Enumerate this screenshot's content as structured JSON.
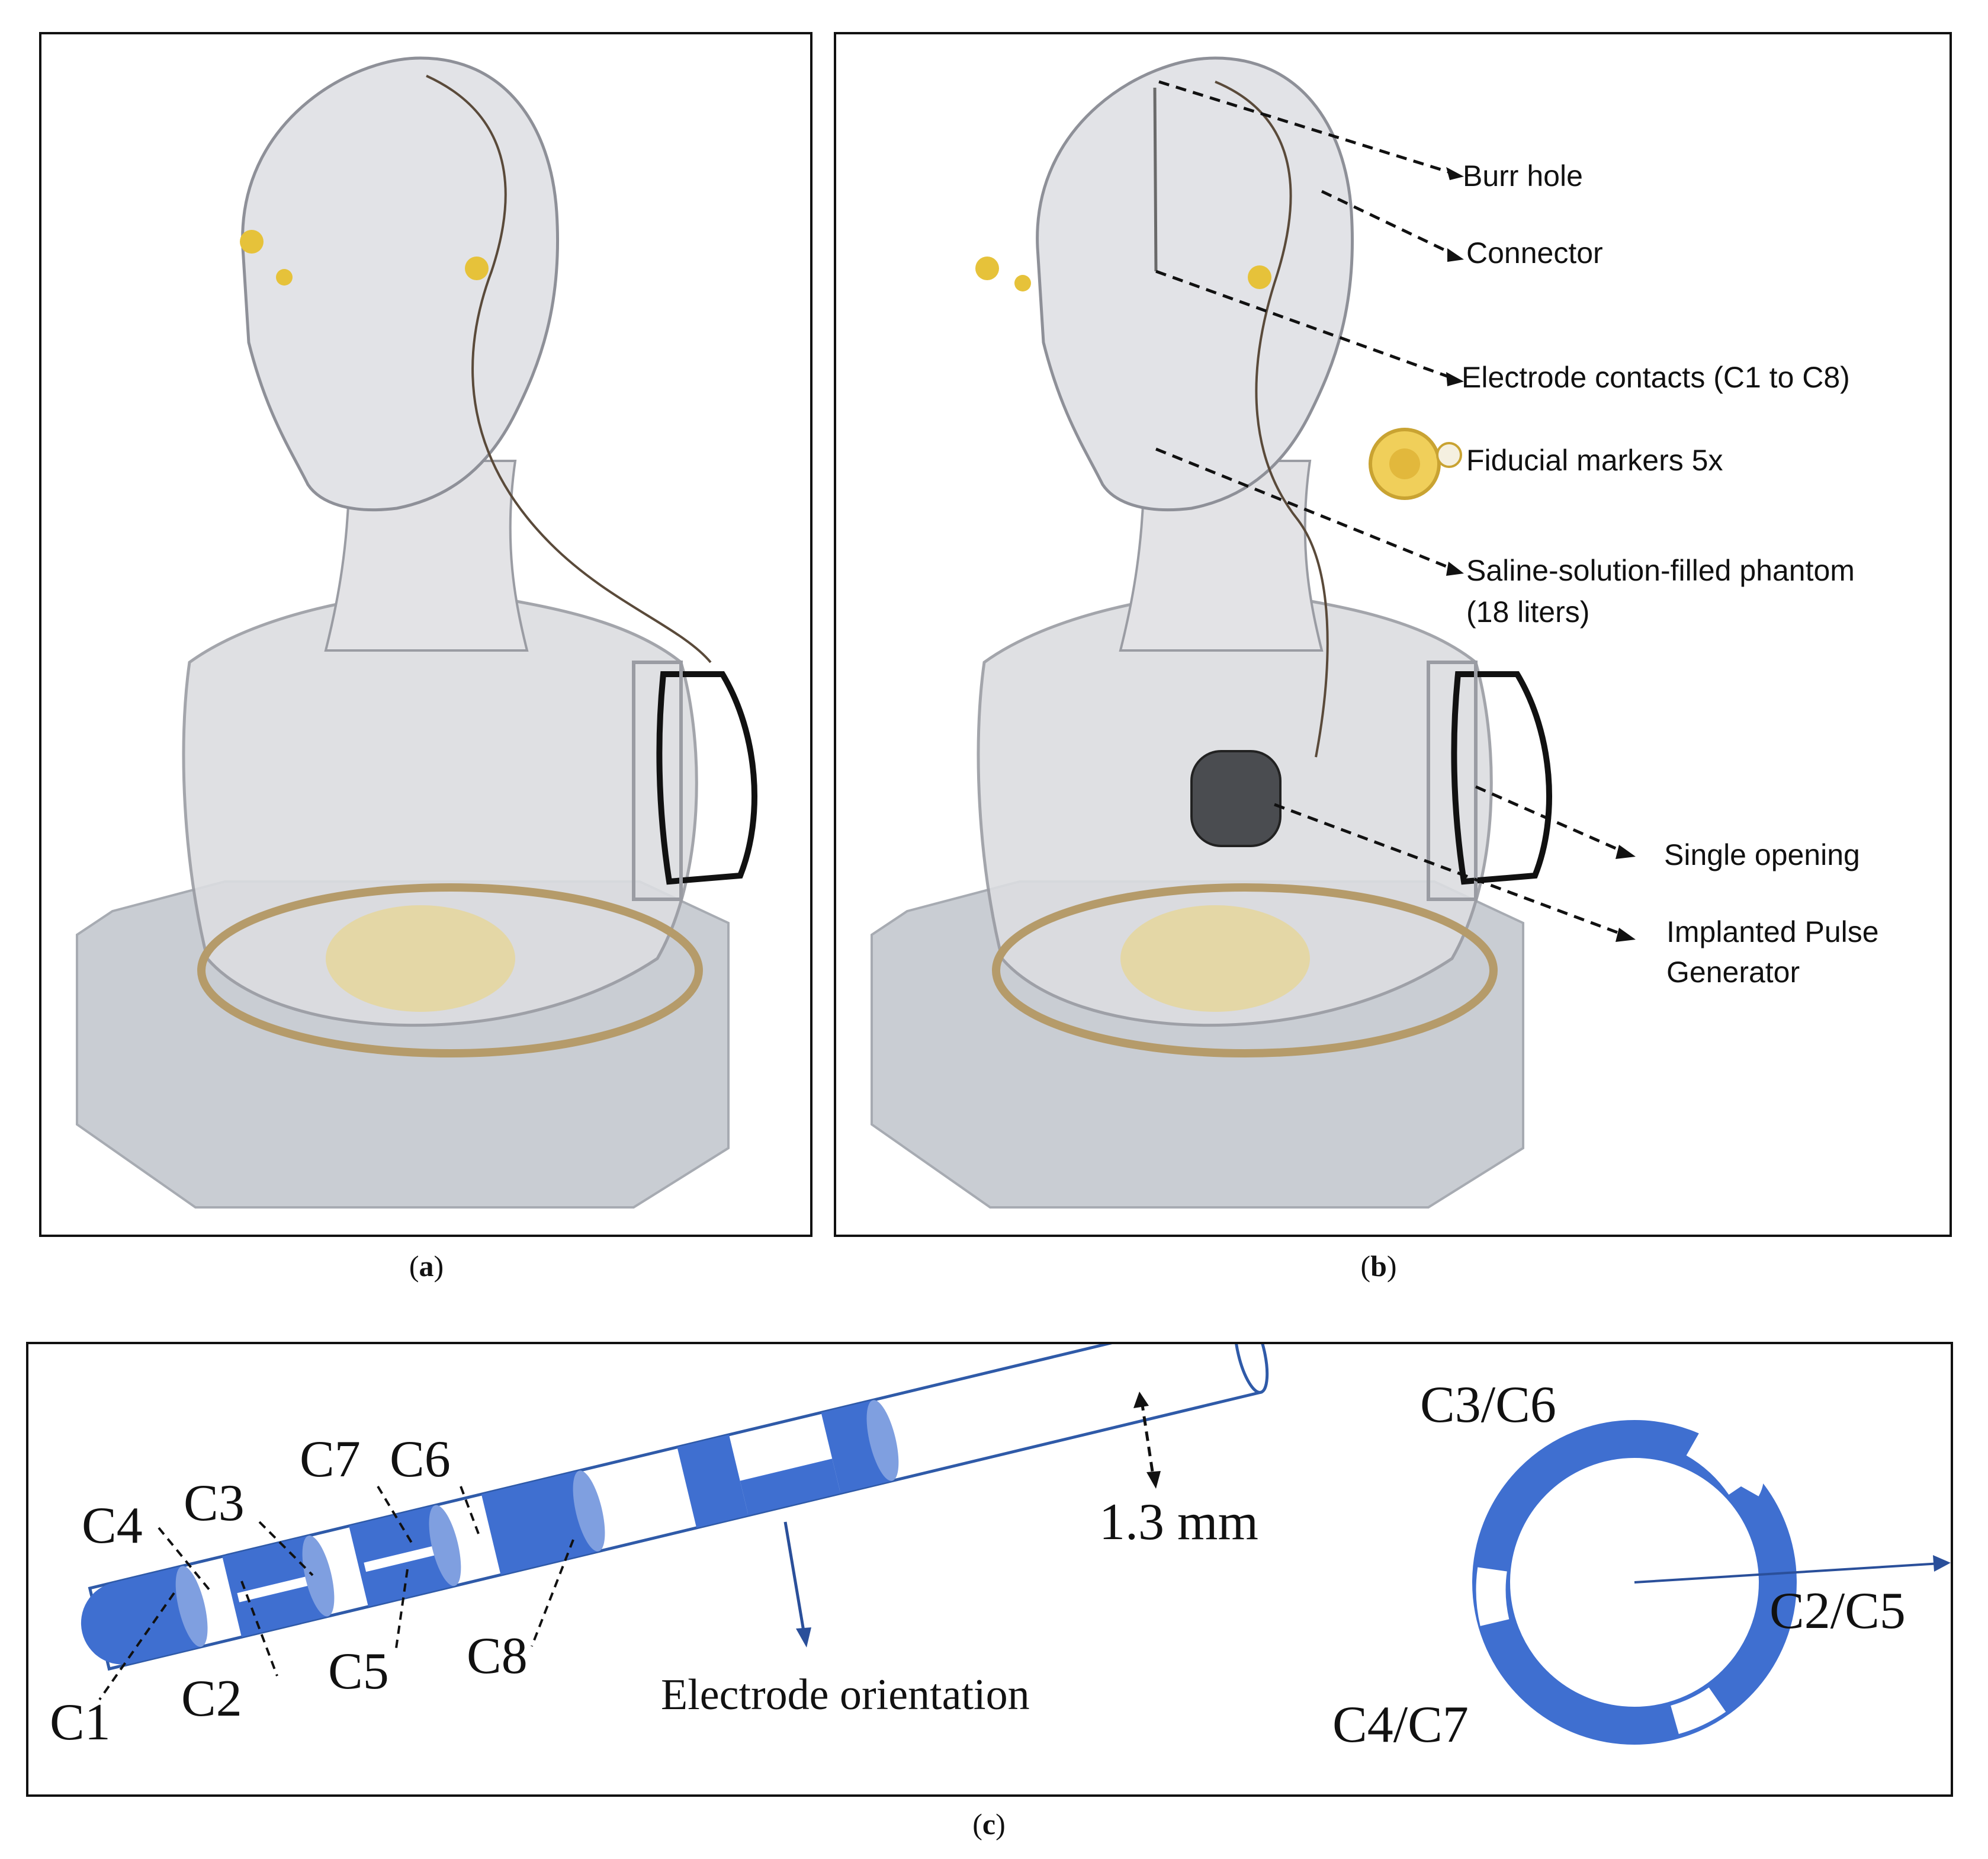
{
  "panels": {
    "a": {
      "caption_open": "(",
      "caption_letter": "a",
      "caption_close": ")"
    },
    "b": {
      "caption_open": "(",
      "caption_letter": "b",
      "caption_close": ")",
      "labels": {
        "burr_hole": "Burr hole",
        "connector": "Connector",
        "electrode_contacts": "Electrode contacts (C1 to C8)",
        "fiducial_markers": "Fiducial markers 5x",
        "saline_line1": "Saline-solution-filled phantom",
        "saline_line2": "(18 liters)",
        "single_opening": "Single opening",
        "ipg_line1": "Implanted Pulse",
        "ipg_line2": "Generator"
      }
    },
    "c": {
      "caption_open": "(",
      "caption_letter": "c",
      "caption_close": ")",
      "contacts": {
        "c1": "C1",
        "c2": "C2",
        "c3": "C3",
        "c4": "C4",
        "c5": "C5",
        "c6": "C6",
        "c7": "C7",
        "c8": "C8"
      },
      "diameter": "1.3 mm",
      "orientation": "Electrode orientation",
      "ring": {
        "top": "C3/C6",
        "right": "C2/C5",
        "bottom_left": "C4/C7"
      }
    }
  },
  "colors": {
    "electrode_blue": "#3f6fd0",
    "electrode_dark": "#2f5aa8",
    "arrow": "#2a4f9a"
  }
}
